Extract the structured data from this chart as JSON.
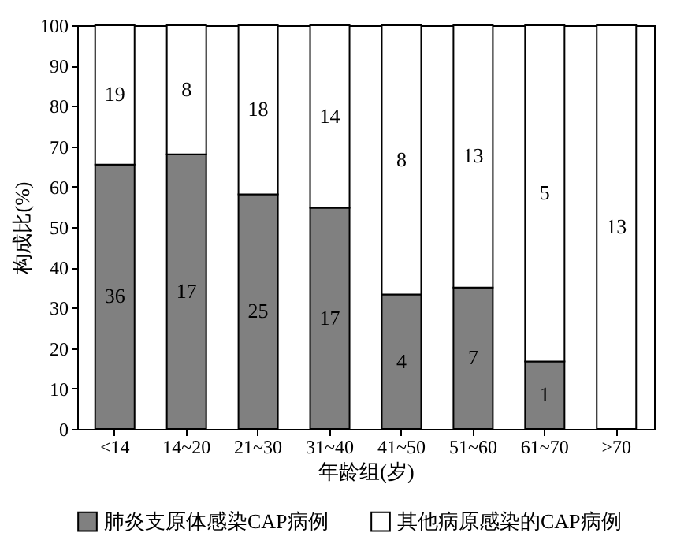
{
  "chart_data": {
    "type": "bar",
    "stacked": true,
    "xlabel": "年龄组(岁)",
    "ylabel": "构成比(%)",
    "categories": [
      "<14",
      "14~20",
      "21~30",
      "31~40",
      "41~50",
      "51~60",
      "61~70",
      ">70"
    ],
    "ylim": [
      0,
      100
    ],
    "yticks": [
      0,
      10,
      20,
      30,
      40,
      50,
      60,
      70,
      80,
      90,
      100
    ],
    "legend": "bottom",
    "series": [
      {
        "name": "肺炎支原体感染CAP病例",
        "color": "#808080",
        "values": [
          65.5,
          68,
          58.1,
          54.8,
          33.3,
          35,
          16.7,
          0
        ]
      },
      {
        "name": "其他病原感染的CAP病例",
        "color": "#ffffff",
        "values": [
          34.5,
          32,
          41.9,
          45.2,
          66.7,
          65,
          83.3,
          100
        ]
      }
    ],
    "annotations": [
      "36",
      "17",
      "25",
      "17",
      "4",
      "7",
      "1",
      "19",
      "8",
      "18",
      "14",
      "8",
      "13",
      "5",
      "13"
    ]
  }
}
